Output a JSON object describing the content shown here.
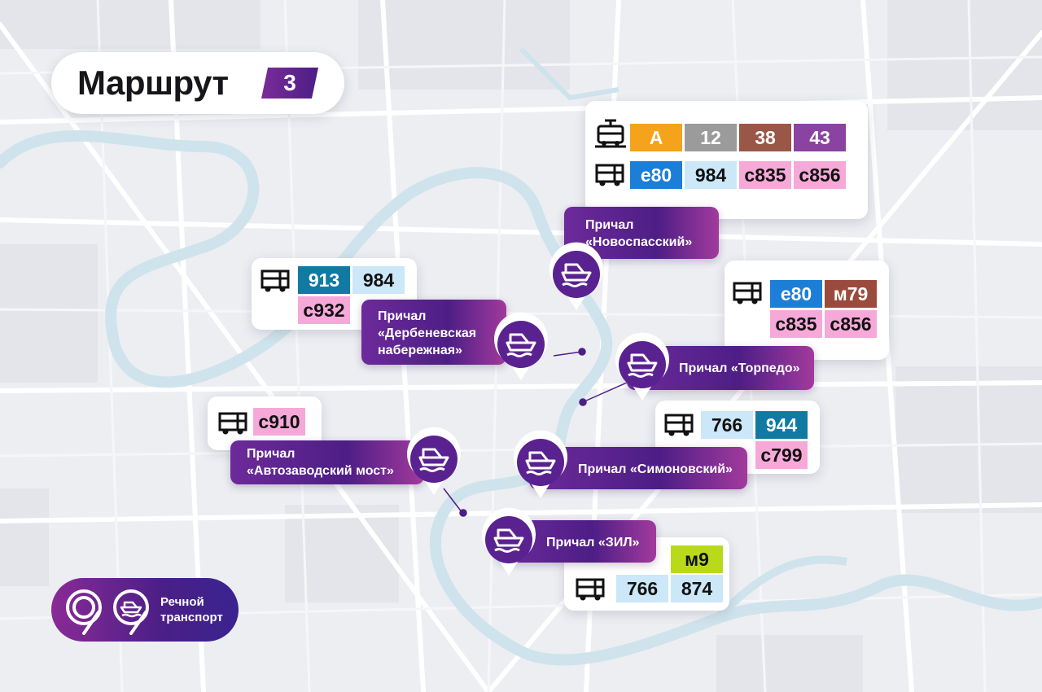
{
  "title": {
    "text": "Маршрут",
    "route_number": "3"
  },
  "piers": [
    {
      "id": "novospassky",
      "line1": "Причал",
      "line2": "«Новоспасский»"
    },
    {
      "id": "derbenevskaya",
      "line1": "Причал",
      "line2": "«Дербеневская",
      "line3": "набережная»"
    },
    {
      "id": "torpedo",
      "line1": "Причал «Торпедо»"
    },
    {
      "id": "avtozavodsky",
      "line1": "Причал",
      "line2": "«Автозаводский мост»"
    },
    {
      "id": "simonovsky",
      "line1": "Причал «Симоновский»"
    },
    {
      "id": "zil",
      "line1": "Причал «ЗИЛ»"
    }
  ],
  "transfers": {
    "novospassky": {
      "tram": [
        "А",
        "12",
        "38",
        "43"
      ],
      "bus": [
        "е80",
        "984",
        "с835",
        "с856"
      ]
    },
    "derbenevskaya": {
      "bus": [
        "913",
        "984",
        "с932"
      ]
    },
    "torpedo": {
      "bus": [
        "е80",
        "м79",
        "с835",
        "с856"
      ]
    },
    "avtozavodsky": {
      "bus": [
        "с910"
      ]
    },
    "simonovsky": {
      "bus": [
        "766",
        "944",
        "с799"
      ]
    },
    "zil": {
      "bus": [
        "м9",
        "766",
        "874"
      ]
    }
  },
  "logo": {
    "line1": "Речной",
    "line2": "транспорт"
  },
  "icons": {
    "tram": "tram-icon",
    "bus": "bus-icon",
    "boat": "boat-icon",
    "logo": "moscow-transport-logo-icon"
  },
  "colors": {
    "purple_dark": "#4d1e86",
    "purple_mid": "#6d2a9a",
    "magenta": "#a23a9c",
    "river": "#cfe3ec",
    "map_bg": "#eceef2",
    "badge_orange": "#f5a31a",
    "badge_gray": "#9b9b9b",
    "badge_brown": "#9a5646",
    "badge_violet": "#8a43a1",
    "badge_blue": "#1c7ed6",
    "badge_teal": "#107aa3",
    "badge_lightblue": "#cbe7f8",
    "badge_pink": "#f6a9d8",
    "badge_lime": "#b8da1b",
    "badge_darkred": "#9b4b3d"
  }
}
